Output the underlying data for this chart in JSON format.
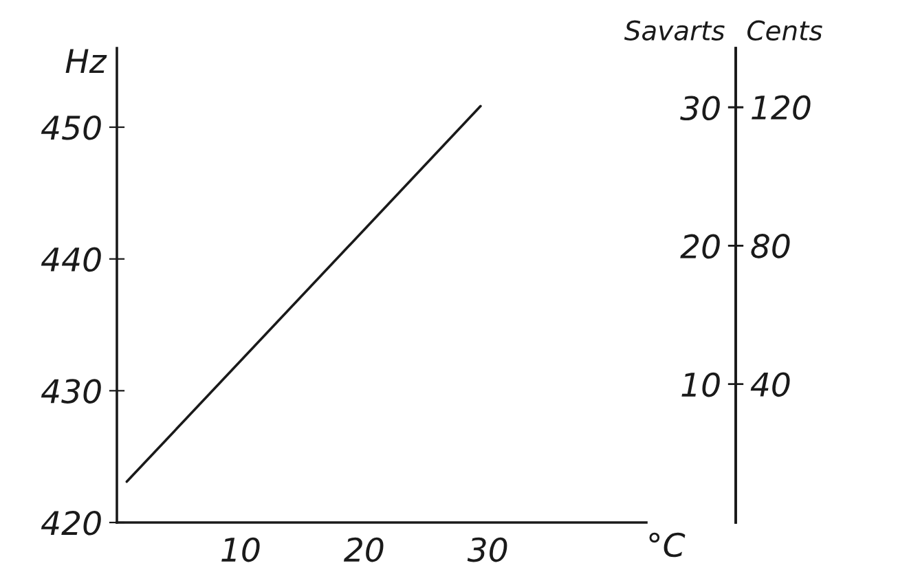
{
  "chart_data": {
    "type": "line",
    "xlabel": "°C",
    "ylabel": "Hz",
    "y2label": "Savarts",
    "y3label": "Cents",
    "x": [
      0.8,
      29.4
    ],
    "series": [
      {
        "color": "#1a1a1a",
        "values": [
          423.1,
          451.6
        ]
      }
    ],
    "xlim": [
      0,
      42.8
    ],
    "xticks": [
      10,
      20,
      30
    ],
    "ylim": [
      420,
      456
    ],
    "yticks": [
      420,
      430,
      440,
      450
    ],
    "y2lim": [
      0,
      34.3
    ],
    "y2ticks": [
      10,
      20,
      30
    ],
    "y3lim": [
      0,
      137
    ],
    "y3ticks": [
      40,
      80,
      120
    ],
    "grid": false,
    "marker": "none",
    "line_style": "solid"
  }
}
